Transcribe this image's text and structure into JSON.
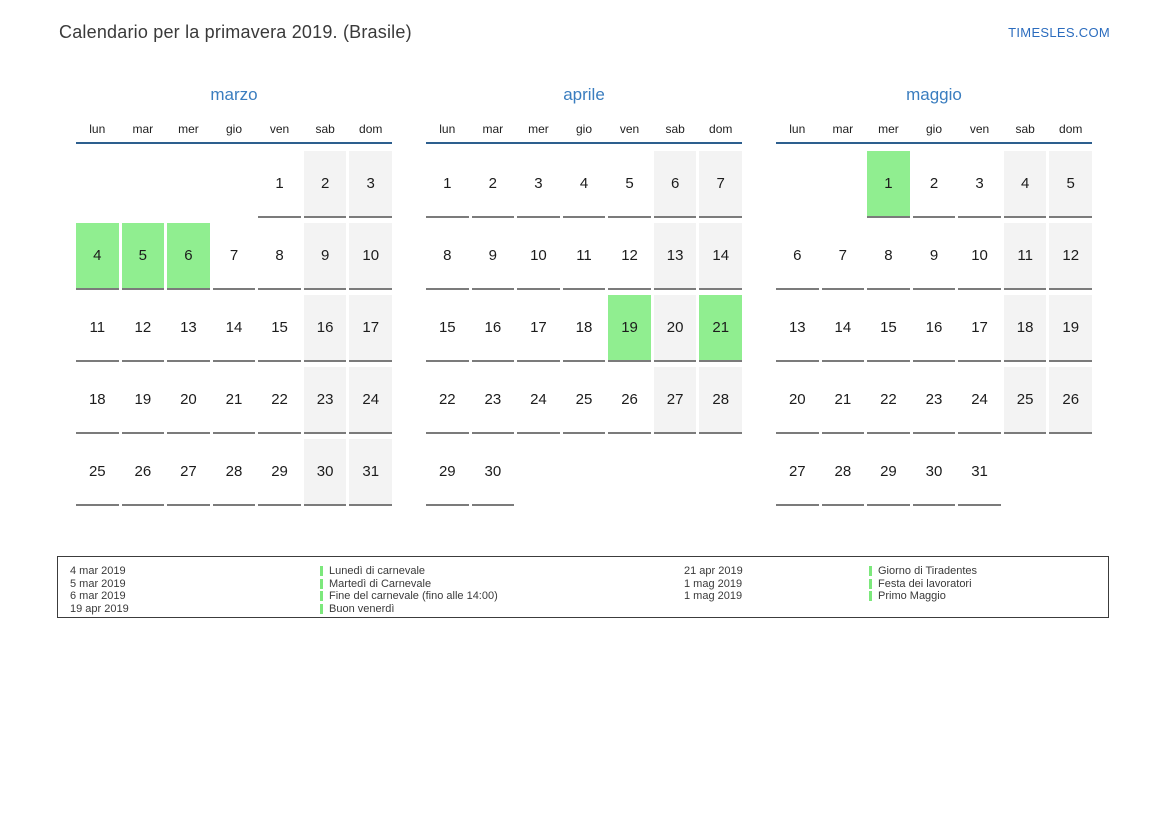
{
  "page": {
    "title": "Calendario per la primavera 2019. (Brasile)",
    "site": "TIMESLES.COM"
  },
  "weekdays": [
    "lun",
    "mar",
    "mer",
    "gio",
    "ven",
    "sab",
    "dom"
  ],
  "months": [
    {
      "name": "marzo",
      "weeks": [
        [
          null,
          null,
          null,
          null,
          1,
          2,
          3
        ],
        [
          4,
          5,
          6,
          7,
          8,
          9,
          10
        ],
        [
          11,
          12,
          13,
          14,
          15,
          16,
          17
        ],
        [
          18,
          19,
          20,
          21,
          22,
          23,
          24
        ],
        [
          25,
          26,
          27,
          28,
          29,
          30,
          31
        ]
      ],
      "highlighted_days": [
        4,
        5,
        6
      ]
    },
    {
      "name": "aprile",
      "weeks": [
        [
          1,
          2,
          3,
          4,
          5,
          6,
          7
        ],
        [
          8,
          9,
          10,
          11,
          12,
          13,
          14
        ],
        [
          15,
          16,
          17,
          18,
          19,
          20,
          21
        ],
        [
          22,
          23,
          24,
          25,
          26,
          27,
          28
        ],
        [
          29,
          30,
          null,
          null,
          null,
          null,
          null
        ]
      ],
      "highlighted_days": [
        19,
        21
      ]
    },
    {
      "name": "maggio",
      "weeks": [
        [
          null,
          null,
          1,
          2,
          3,
          4,
          5
        ],
        [
          6,
          7,
          8,
          9,
          10,
          11,
          12
        ],
        [
          13,
          14,
          15,
          16,
          17,
          18,
          19
        ],
        [
          20,
          21,
          22,
          23,
          24,
          25,
          26
        ],
        [
          27,
          28,
          29,
          30,
          31,
          null,
          null
        ]
      ],
      "highlighted_days": [
        1
      ]
    }
  ],
  "legend": {
    "columns": [
      {
        "entries": [
          {
            "date": "4 mar 2019",
            "label": "Lunedì di carnevale"
          },
          {
            "date": "5 mar 2019",
            "label": "Martedì di Carnevale"
          },
          {
            "date": "6 mar 2019",
            "label": "Fine del carnevale (fino alle 14:00)"
          },
          {
            "date": "19 apr 2019",
            "label": "Buon venerdì"
          }
        ]
      },
      {
        "entries": [
          {
            "date": "21 apr 2019",
            "label": "Giorno di Tiradentes"
          },
          {
            "date": "1 mag 2019",
            "label": "Festa dei lavoratori"
          },
          {
            "date": "1 mag 2019",
            "label": "Primo Maggio"
          }
        ]
      }
    ]
  },
  "colors": {
    "accent_blue": "#3a7dbf",
    "link_blue": "#2b6cbe",
    "header_rule": "#2d5f8e",
    "highlight_green": "#90ee90",
    "legend_bar_green": "#7ce87c",
    "weekend_bg": "#f3f3f3",
    "day_rule": "#7b7b7b"
  }
}
